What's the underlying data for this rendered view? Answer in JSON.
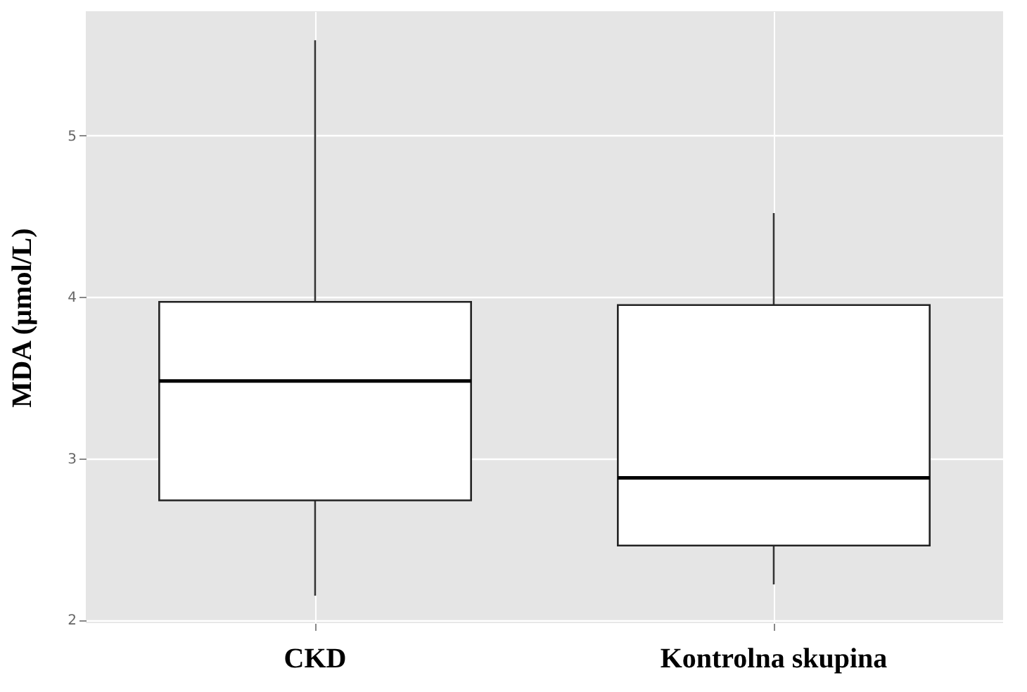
{
  "chart_data": {
    "type": "box",
    "ylabel": "MDA (µmol/L)",
    "categories": [
      "CKD",
      "Kontrolna skupina"
    ],
    "boxes": [
      {
        "low": 2.15,
        "q1": 2.74,
        "median": 3.48,
        "q3": 3.97,
        "high": 5.59
      },
      {
        "low": 2.22,
        "q1": 2.46,
        "median": 2.88,
        "q3": 3.95,
        "high": 4.52
      }
    ],
    "ylim": [
      1.98,
      5.77
    ],
    "yticks": [
      2,
      3,
      4,
      5
    ],
    "grid": true
  }
}
